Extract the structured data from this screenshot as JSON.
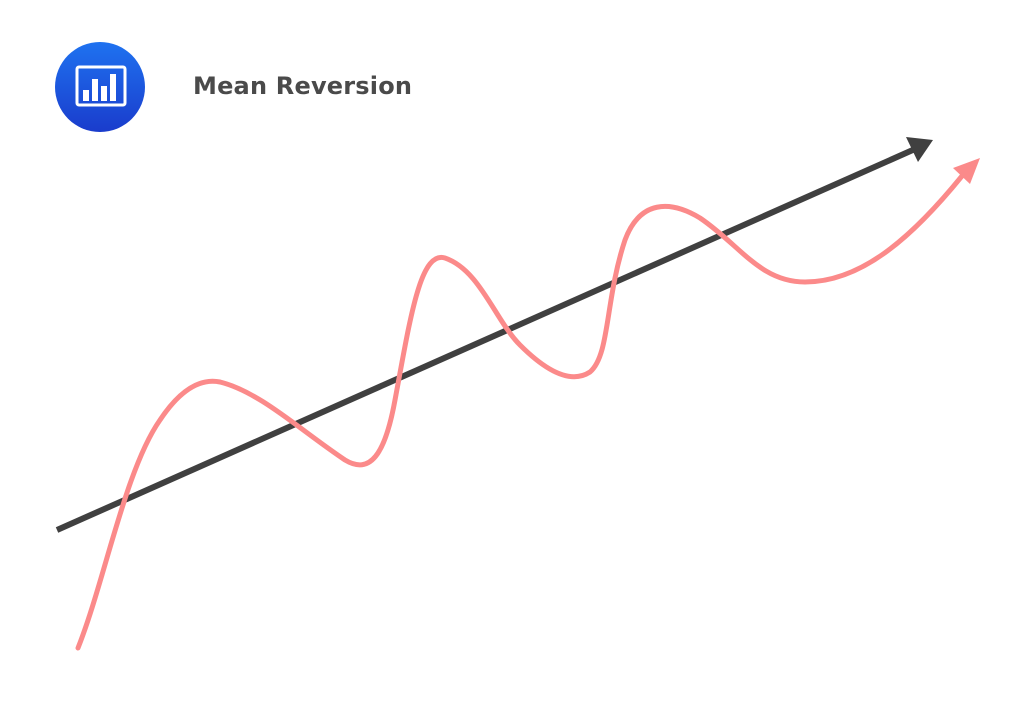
{
  "header": {
    "title": "Mean Reversion",
    "icon": "bar-chart-icon"
  },
  "colors": {
    "icon_gradient_top": "#1f6fee",
    "icon_gradient_bottom": "#1a3fd0",
    "trend_line": "#404040",
    "price_curve": "#fb8a8a",
    "title_text": "#4a4a4a"
  }
}
